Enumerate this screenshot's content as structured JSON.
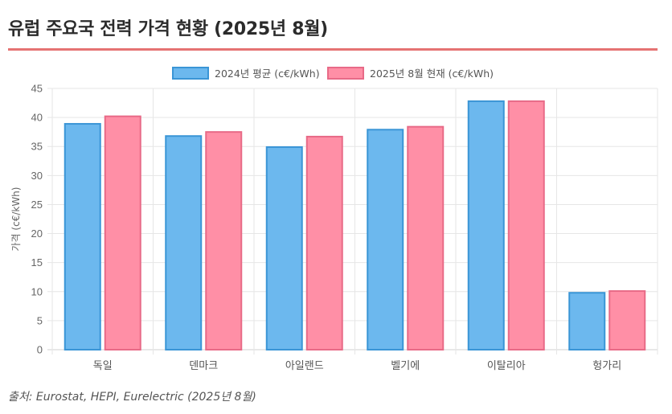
{
  "header": {
    "title": "유럽 주요국 전력 가격 현황 (2025년 8월)"
  },
  "source": "출처: Eurostat, HEPI, Eurelectric (2025년 8월)",
  "colors": {
    "accent_rule": "#e57373",
    "series_2024_fill": "#6cb8ee",
    "series_2024_stroke": "#3a95d6",
    "series_2025_fill": "#ff8fa6",
    "series_2025_stroke": "#e86a87"
  },
  "chart_data": {
    "type": "bar",
    "title": "유럽 주요국 전력 가격 현황 (2025년 8월)",
    "xlabel": "",
    "ylabel": "가격 (c€/kWh)",
    "ylim": [
      0,
      45
    ],
    "yticks": [
      0,
      5,
      10,
      15,
      20,
      25,
      30,
      35,
      40,
      45
    ],
    "grid": true,
    "legend_position": "top-center",
    "categories": [
      "독일",
      "덴마크",
      "아일랜드",
      "벨기에",
      "이탈리아",
      "헝가리"
    ],
    "series": [
      {
        "name": "2024년 평균 (c€/kWh)",
        "values": [
          38.9,
          36.8,
          34.9,
          37.9,
          42.8,
          9.8
        ]
      },
      {
        "name": "2025년 8월 현재 (c€/kWh)",
        "values": [
          40.2,
          37.5,
          36.7,
          38.4,
          42.8,
          10.1
        ]
      }
    ]
  }
}
